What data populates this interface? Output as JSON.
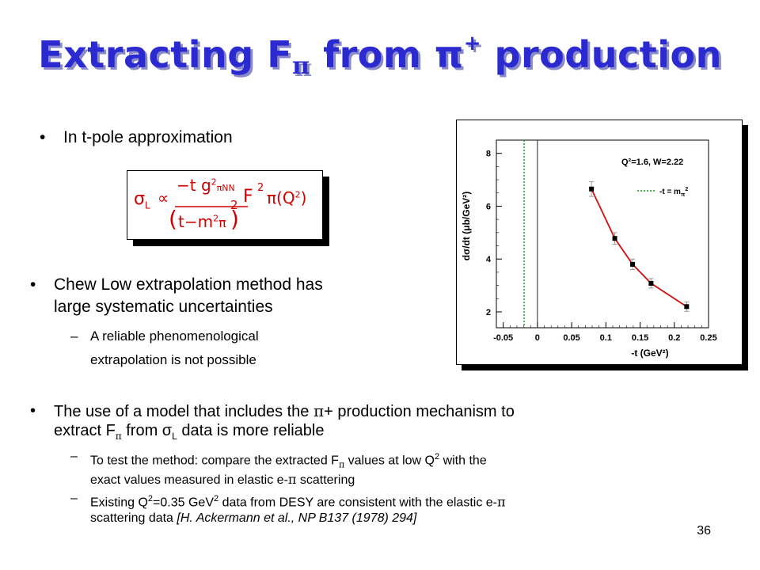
{
  "slide": {
    "title_main": "Extracting F",
    "title_sub": "π",
    "title_mid": " from π",
    "title_sup": "+",
    "title_end": " production",
    "page_number": "36"
  },
  "bullets": {
    "b1": "In t-pole approximation",
    "b2_line1": "Chew Low extrapolation method has",
    "b2_line2": "large systematic uncertainties",
    "b2_sub_line1": "A reliable phenomenological",
    "b2_sub_line2": "extrapolation is not possible",
    "b3_p1": "The use of a model that includes the ",
    "b3_pi": "π",
    "b3_p2": "+ production mechanism to",
    "b3_line2_p1": "extract F",
    "b3_line2_sub": "π",
    "b3_line2_p2": " from σ",
    "b3_line2_sub2": "L",
    "b3_line2_p3": " data is more reliable",
    "b3_s1_p1": "To test the method: compare the extracted F",
    "b3_s1_sub": "π",
    "b3_s1_p2": " values at low Q",
    "b3_s1_sup": "2",
    "b3_s1_p3": " with the",
    "b3_s1_line2_p1": "exact values measured in elastic e-",
    "b3_s1_line2_pi": "π",
    "b3_s1_line2_p2": " scattering",
    "b3_s2_p1": "Existing Q",
    "b3_s2_sup": "2",
    "b3_s2_p2": "=0.35 GeV",
    "b3_s2_sup2": "2",
    "b3_s2_p3": " data from DESY are consistent with the elastic e-",
    "b3_s2_pi": "π",
    "b3_s2_line2": "scattering data ",
    "b3_s2_ref": "[H. Ackermann et al., NP B137 (1978) 294]",
    "dot": "•",
    "dash": "–"
  },
  "formula": {
    "sigma": "σ",
    "sigma_sub": "L",
    "propto": "∝",
    "num_p1": "−t g",
    "num_sup": "2",
    "num_sub": "πNN",
    "den_open": "(",
    "den_t": "t−m",
    "den_sup": "2",
    "den_pi": "π",
    "den_close": ")",
    "den_pow": "2",
    "F": "F",
    "F_sup": "2",
    "F_sub": "π",
    "Q_part": "(Q",
    "Q_sup": "2",
    "Q_close": ")"
  },
  "chart_data": {
    "type": "line",
    "annotation": "Q²=1.6, W=2.22",
    "legend_label": "-t = m",
    "legend_sub": "π",
    "legend_sup": "2",
    "legend_position": "top-right",
    "xlabel": "-t (GeV²)",
    "ylabel": "dσ/dt (μb/GeV²)",
    "xlim": [
      -0.06,
      0.25
    ],
    "ylim": [
      1.4,
      8.5
    ],
    "x_ticks": [
      "-0.05",
      "0",
      "0.05",
      "0.1",
      "0.15",
      "0.2",
      "0.25"
    ],
    "x_tick_values": [
      -0.05,
      0,
      0.05,
      0.1,
      0.15,
      0.2,
      0.25
    ],
    "y_ticks": [
      "2",
      "4",
      "6",
      "8"
    ],
    "y_tick_values": [
      2,
      4,
      6,
      8
    ],
    "pole_line_x": -0.0195,
    "zero_line_x": 0,
    "series": [
      {
        "x": [
          0.079,
          0.113,
          0.139,
          0.166,
          0.218
        ],
        "y": [
          6.65,
          4.78,
          3.8,
          3.08,
          2.2
        ],
        "yerr": [
          0.28,
          0.22,
          0.2,
          0.18,
          0.18
        ]
      }
    ],
    "colors": {
      "line": "#d01010",
      "pole": "#10a010",
      "marker": "#000000",
      "error": "#999999"
    }
  }
}
